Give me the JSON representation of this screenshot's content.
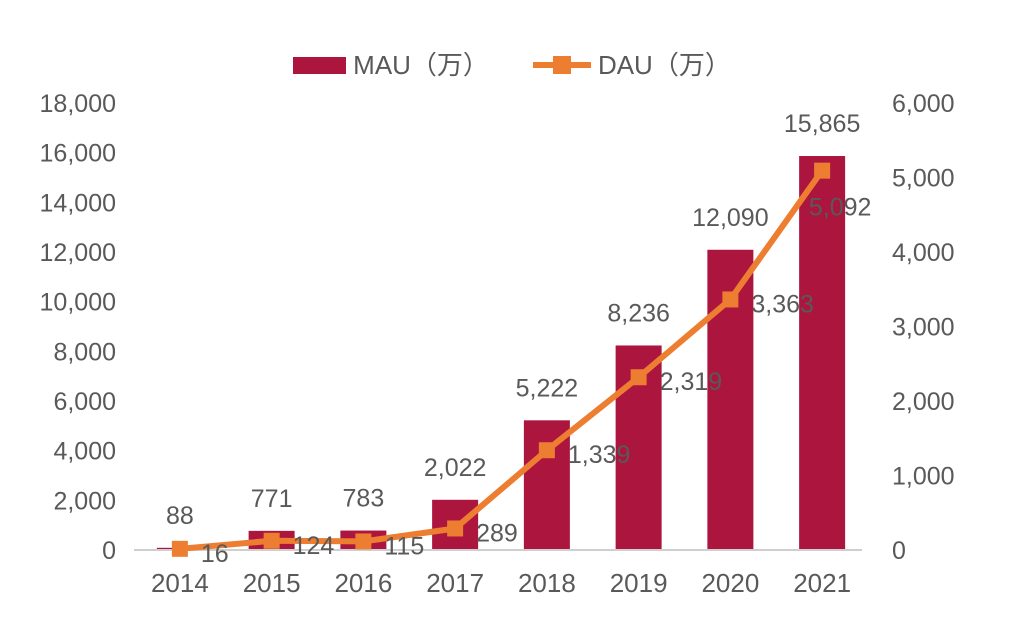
{
  "colors": {
    "mau_bar": "#AC153D",
    "dau_line": "#ED7D31",
    "label_text": "#595959",
    "axis_line": "#CFCFCF",
    "background": "#FFFFFF"
  },
  "legend": {
    "items": [
      {
        "label": "MAU（万）",
        "swatch": "bar-swatch"
      },
      {
        "label": "DAU（万）",
        "swatch": "line-marker-swatch"
      }
    ]
  },
  "chart_data": {
    "type": "bar",
    "subtype": "combo-bar-line-dual-axis",
    "categories": [
      "2014",
      "2015",
      "2016",
      "2017",
      "2018",
      "2019",
      "2020",
      "2021"
    ],
    "series": [
      {
        "name": "MAU（万）",
        "type": "bar",
        "axis": "left",
        "color": "#AC153D",
        "values": [
          88,
          771,
          783,
          2022,
          5222,
          8236,
          12090,
          15865
        ],
        "labels": [
          "88",
          "771",
          "783",
          "2,022",
          "5,222",
          "8,236",
          "12,090",
          "15,865"
        ]
      },
      {
        "name": "DAU（万）",
        "type": "line",
        "axis": "right",
        "color": "#ED7D31",
        "marker": "square",
        "values": [
          16,
          124,
          115,
          289,
          1339,
          2319,
          3363,
          5092
        ],
        "labels": [
          "16",
          "124",
          "115",
          "289",
          "1,339",
          "2,319",
          "3,363",
          "5,092"
        ]
      }
    ],
    "left_axis": {
      "min": 0,
      "max": 18000,
      "step": 2000,
      "ticks": [
        "0",
        "2,000",
        "4,000",
        "6,000",
        "8,000",
        "10,000",
        "12,000",
        "14,000",
        "16,000",
        "18,000"
      ]
    },
    "right_axis": {
      "min": 0,
      "max": 6000,
      "step": 1000,
      "ticks": [
        "0",
        "1,000",
        "2,000",
        "3,000",
        "4,000",
        "5,000",
        "6,000"
      ]
    },
    "grid": false,
    "legend_position": "top-center",
    "title": ""
  }
}
